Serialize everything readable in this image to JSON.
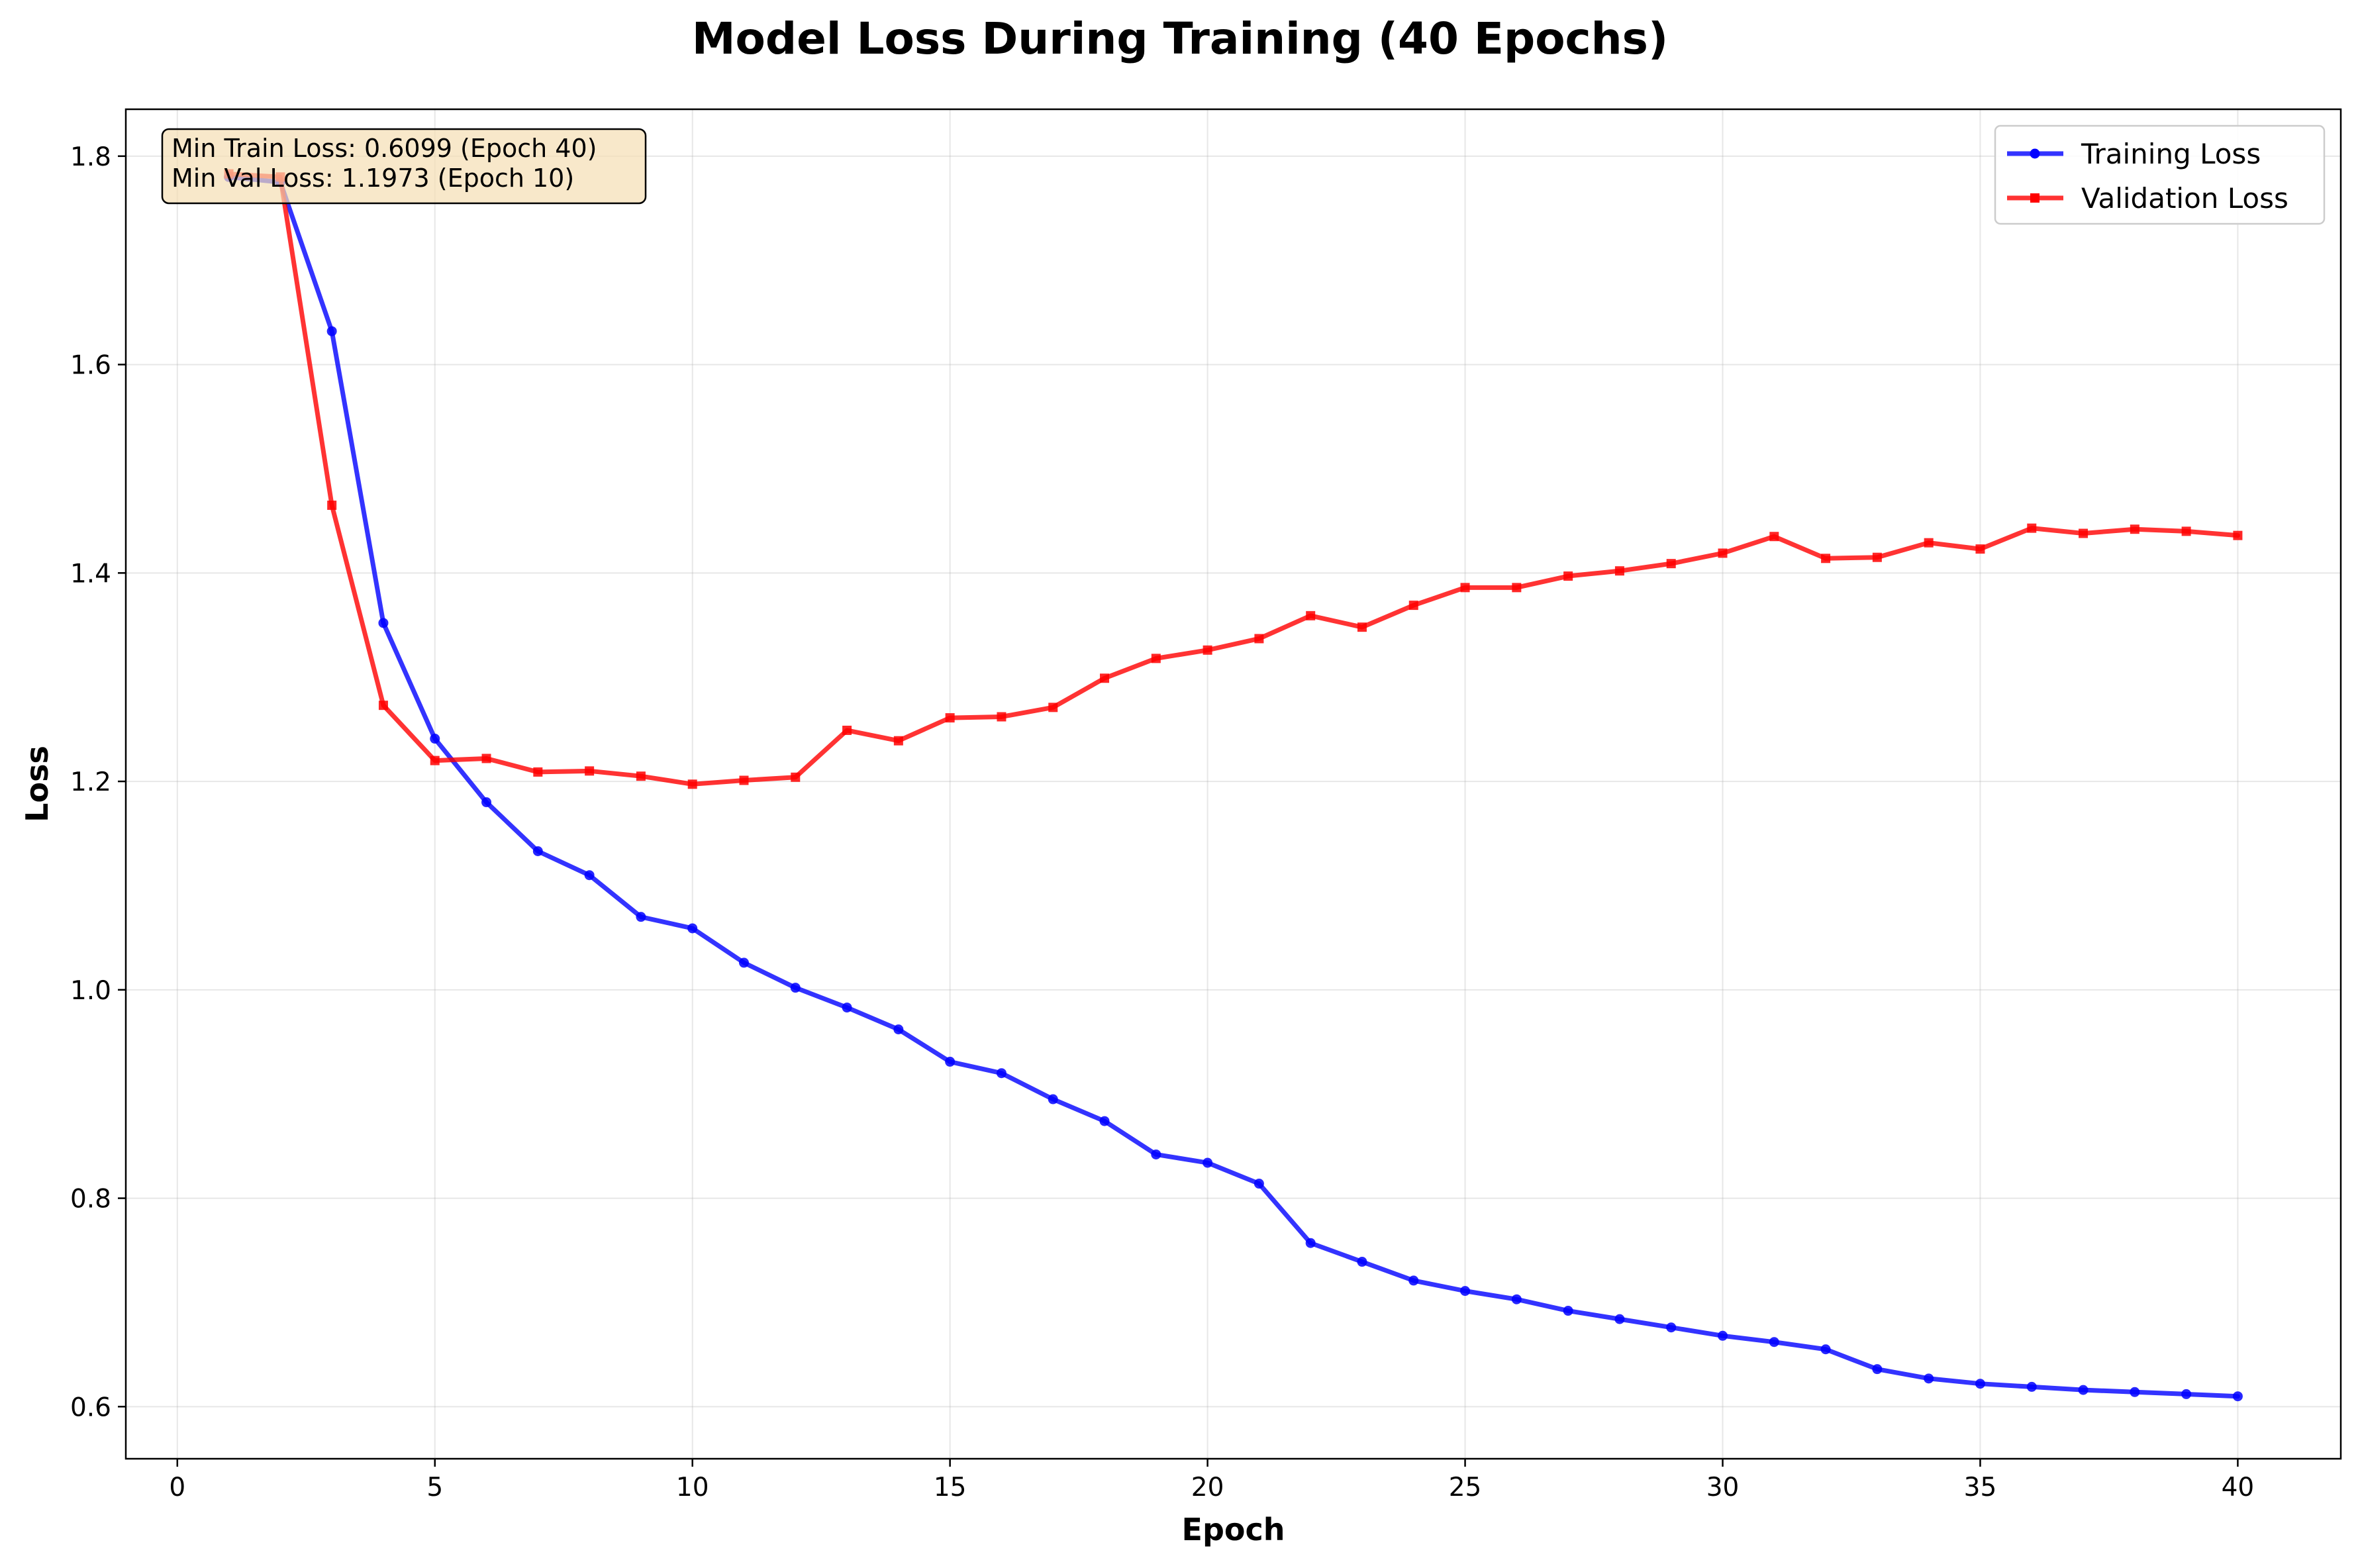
{
  "chart_data": {
    "type": "line",
    "title": "Model Loss During Training (40 Epochs)",
    "xlabel": "Epoch",
    "ylabel": "Loss",
    "xlim": [
      -1,
      42
    ],
    "ylim": [
      0.55,
      1.845
    ],
    "xticks": [
      0,
      5,
      10,
      15,
      20,
      25,
      30,
      35,
      40
    ],
    "yticks": [
      0.6,
      0.8,
      1.0,
      1.2,
      1.4,
      1.6,
      1.8
    ],
    "xtick_labels": [
      "0",
      "5",
      "10",
      "15",
      "20",
      "25",
      "30",
      "35",
      "40"
    ],
    "ytick_labels": [
      "0.6",
      "0.8",
      "1.0",
      "1.2",
      "1.4",
      "1.6",
      "1.8"
    ],
    "grid": true,
    "legend_position": "top-right",
    "x": [
      1,
      2,
      3,
      4,
      5,
      6,
      7,
      8,
      9,
      10,
      11,
      12,
      13,
      14,
      15,
      16,
      17,
      18,
      19,
      20,
      21,
      22,
      23,
      24,
      25,
      26,
      27,
      28,
      29,
      30,
      31,
      32,
      33,
      34,
      35,
      36,
      37,
      38,
      39,
      40
    ],
    "series": [
      {
        "name": "Training Loss",
        "color": "#0000ff",
        "marker": "circle",
        "values": [
          1.78,
          1.775,
          1.632,
          1.352,
          1.241,
          1.18,
          1.133,
          1.11,
          1.07,
          1.059,
          1.026,
          1.002,
          0.983,
          0.962,
          0.931,
          0.92,
          0.895,
          0.874,
          0.842,
          0.834,
          0.814,
          0.757,
          0.739,
          0.721,
          0.711,
          0.703,
          0.692,
          0.684,
          0.676,
          0.668,
          0.662,
          0.655,
          0.636,
          0.627,
          0.622,
          0.619,
          0.616,
          0.614,
          0.612,
          0.6099
        ]
      },
      {
        "name": "Validation Loss",
        "color": "#ff0000",
        "marker": "square",
        "values": [
          1.783,
          1.78,
          1.465,
          1.273,
          1.22,
          1.222,
          1.209,
          1.21,
          1.205,
          1.1973,
          1.201,
          1.204,
          1.249,
          1.239,
          1.261,
          1.262,
          1.271,
          1.299,
          1.318,
          1.326,
          1.337,
          1.359,
          1.348,
          1.369,
          1.386,
          1.386,
          1.397,
          1.402,
          1.409,
          1.419,
          1.435,
          1.414,
          1.415,
          1.429,
          1.423,
          1.443,
          1.438,
          1.442,
          1.44,
          1.436
        ]
      }
    ],
    "annotation": {
      "lines": [
        "Min Train Loss: 0.6099 (Epoch 40)",
        "Min Val Loss: 1.1973 (Epoch 10)"
      ],
      "background": "#f5deb3",
      "position": "top-left"
    }
  }
}
